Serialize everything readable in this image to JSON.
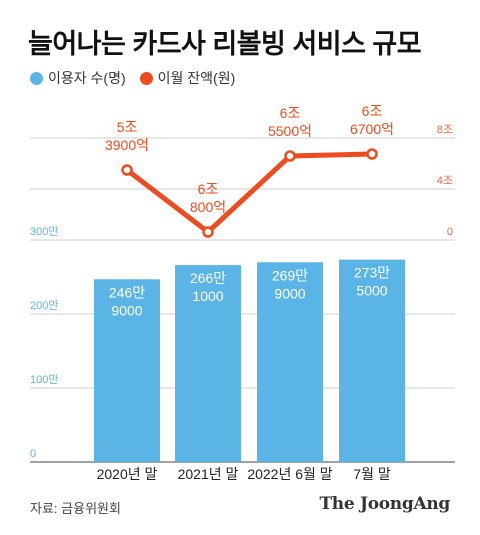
{
  "title": "늘어나는 카드사 리볼빙 서비스 규모",
  "legend": [
    {
      "label": "이용자 수(명)",
      "color": "#5ab4e5"
    },
    {
      "label": "이월 잔액(원)",
      "color": "#ee4b1f"
    }
  ],
  "source": "자료: 금융위원회",
  "brand": "The JoongAng",
  "colors": {
    "bar": "#5ab4e5",
    "line": "#ee4b1f",
    "bar_axis": "#5ab4e5",
    "line_axis": "#ee6a3a",
    "grid": "#cfcfcf"
  },
  "chart_data": {
    "type": "bar+line",
    "categories": [
      "2020년 말",
      "2021년 말",
      "2022년 6월 말",
      "7월 말"
    ],
    "bar_axis": {
      "ticks": [
        0,
        100,
        200,
        300
      ],
      "tick_labels": [
        "0",
        "100만",
        "200만",
        "300만"
      ],
      "ylim": [
        0,
        300
      ]
    },
    "line_axis": {
      "ticks": [
        0,
        4,
        8
      ],
      "tick_labels": [
        "0",
        "4조",
        "8조"
      ],
      "ylim": [
        0,
        8
      ]
    },
    "series": [
      {
        "name": "이용자 수(명)",
        "type": "bar",
        "axis": "left",
        "values": [
          2469000,
          2661000,
          2699000,
          2735000
        ],
        "labels": [
          [
            "246만",
            "9000"
          ],
          [
            "266만",
            "1000"
          ],
          [
            "269만",
            "9000"
          ],
          [
            "273만",
            "5000"
          ]
        ]
      },
      {
        "name": "이월 잔액(원)",
        "type": "line",
        "axis": "right",
        "values": [
          5.39,
          6.08,
          6.55,
          6.67
        ],
        "labels": [
          [
            "5조",
            "3900억"
          ],
          [
            "6조",
            "800억"
          ],
          [
            "6조",
            "5500억"
          ],
          [
            "6조",
            "6700억"
          ]
        ]
      }
    ]
  }
}
